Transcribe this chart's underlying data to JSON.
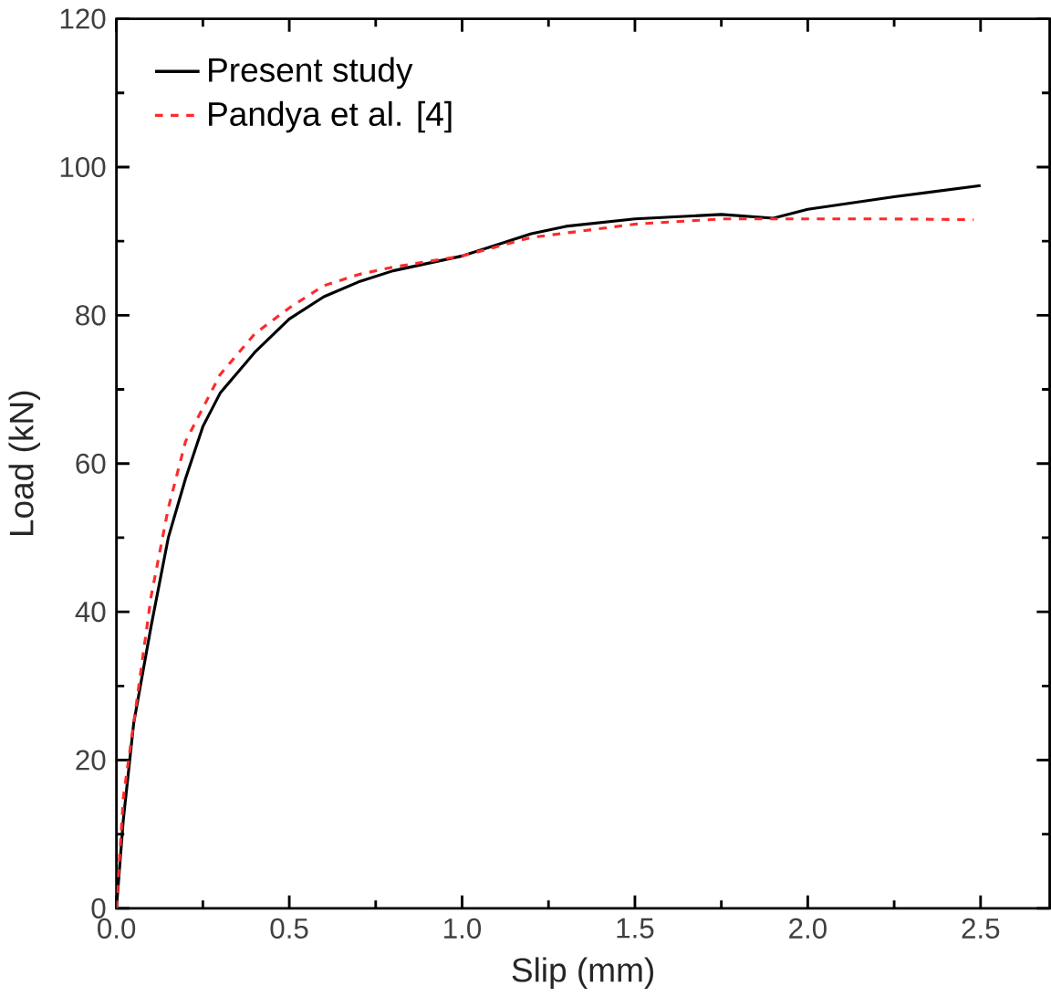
{
  "chart_data": {
    "type": "line",
    "xlabel": "Slip (mm)",
    "ylabel": "Load (kN)",
    "xlim": [
      0,
      2.7
    ],
    "ylim": [
      0,
      120
    ],
    "xticks": [
      {
        "value": 0,
        "label": "0.0"
      },
      0.5,
      {
        "value": 1,
        "label": "1.0"
      },
      1.5,
      {
        "value": 2,
        "label": "2.0"
      },
      2.5
    ],
    "yticks": [
      0,
      20,
      40,
      60,
      80,
      100,
      120
    ],
    "legend": "top left",
    "grid": false,
    "series": [
      {
        "name": "Present study",
        "color": "#000000",
        "line_style": "solid",
        "x": [
          0,
          0.02,
          0.05,
          0.1,
          0.15,
          0.2,
          0.25,
          0.3,
          0.4,
          0.5,
          0.6,
          0.7,
          0.8,
          1.0,
          1.1,
          1.2,
          1.3,
          1.5,
          1.75,
          1.9,
          2.0,
          2.25,
          2.5
        ],
        "values": [
          0,
          12,
          25,
          38,
          50,
          58,
          65,
          69.5,
          75,
          79.5,
          82.5,
          84.5,
          86,
          88,
          89.5,
          91,
          92,
          93,
          93.6,
          93.1,
          94.3,
          96,
          97.5
        ]
      },
      {
        "name": "Pandya et al. [4]",
        "color": "#ff2a2a",
        "line_style": "dashed",
        "x": [
          0,
          0.02,
          0.05,
          0.1,
          0.15,
          0.2,
          0.3,
          0.4,
          0.5,
          0.6,
          0.7,
          0.8,
          1.0,
          1.2,
          1.5,
          1.75,
          2.0,
          2.25,
          2.48
        ],
        "values": [
          0,
          15,
          25,
          42,
          54,
          63,
          72,
          77.5,
          81,
          84,
          85.5,
          86.5,
          88,
          90.5,
          92.3,
          93,
          93,
          93,
          92.9
        ]
      }
    ]
  }
}
